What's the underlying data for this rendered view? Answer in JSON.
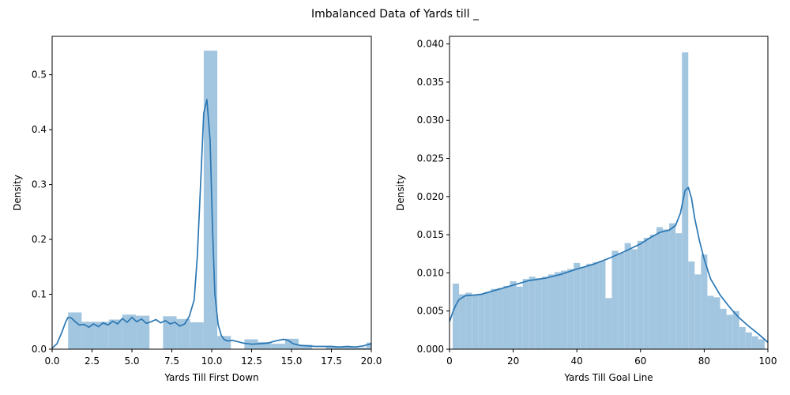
{
  "figure": {
    "suptitle": "Imbalanced Data of Yards till _"
  },
  "colors": {
    "bar": "#a3c6e0",
    "line": "#2b77b3",
    "axis": "#000000"
  },
  "chart_data": [
    {
      "type": "bar",
      "overlay": "kde-line",
      "title": "",
      "xlabel": "Yards Till First Down",
      "ylabel": "Density",
      "xlim": [
        0,
        20
      ],
      "ylim": [
        0,
        0.57
      ],
      "xticks": [
        0,
        2.5,
        5,
        7.5,
        10,
        12.5,
        15,
        17.5,
        20
      ],
      "xtick_labels": [
        "0.0",
        "2.5",
        "5.0",
        "7.5",
        "10.0",
        "12.5",
        "15.0",
        "17.5",
        "20.0"
      ],
      "yticks": [
        0,
        0.1,
        0.2,
        0.3,
        0.4,
        0.5
      ],
      "ytick_labels": [
        "0.0",
        "0.1",
        "0.2",
        "0.3",
        "0.4",
        "0.5"
      ],
      "bars": [
        {
          "x0": 1.0,
          "x1": 1.85,
          "y": 0.067
        },
        {
          "x0": 1.85,
          "x1": 2.7,
          "y": 0.05
        },
        {
          "x0": 2.7,
          "x1": 3.55,
          "y": 0.05
        },
        {
          "x0": 3.55,
          "x1": 4.4,
          "y": 0.054
        },
        {
          "x0": 4.4,
          "x1": 5.25,
          "y": 0.063
        },
        {
          "x0": 5.25,
          "x1": 6.1,
          "y": 0.061
        },
        {
          "x0": 6.1,
          "x1": 6.95,
          "y": 0.0
        },
        {
          "x0": 6.95,
          "x1": 7.8,
          "y": 0.06
        },
        {
          "x0": 7.8,
          "x1": 8.65,
          "y": 0.055
        },
        {
          "x0": 8.65,
          "x1": 9.5,
          "y": 0.049
        },
        {
          "x0": 9.5,
          "x1": 10.35,
          "y": 0.544
        },
        {
          "x0": 10.35,
          "x1": 11.2,
          "y": 0.024
        },
        {
          "x0": 11.2,
          "x1": 12.05,
          "y": 0.0
        },
        {
          "x0": 12.05,
          "x1": 12.9,
          "y": 0.018
        },
        {
          "x0": 12.9,
          "x1": 13.75,
          "y": 0.013
        },
        {
          "x0": 13.75,
          "x1": 14.6,
          "y": 0.01
        },
        {
          "x0": 14.6,
          "x1": 15.45,
          "y": 0.019
        },
        {
          "x0": 15.45,
          "x1": 16.3,
          "y": 0.008
        },
        {
          "x0": 16.3,
          "x1": 17.15,
          "y": 0.0
        },
        {
          "x0": 17.15,
          "x1": 18.0,
          "y": 0.005
        },
        {
          "x0": 18.0,
          "x1": 18.85,
          "y": 0.005
        },
        {
          "x0": 18.85,
          "x1": 19.7,
          "y": 0.003
        },
        {
          "x0": 19.7,
          "x1": 20.55,
          "y": 0.012
        }
      ],
      "kde": {
        "x": [
          0,
          0.3,
          0.6,
          0.85,
          1.0,
          1.2,
          1.45,
          1.7,
          2.0,
          2.3,
          2.6,
          2.9,
          3.2,
          3.5,
          3.8,
          4.1,
          4.4,
          4.7,
          5.0,
          5.3,
          5.6,
          5.9,
          6.2,
          6.5,
          6.8,
          7.1,
          7.4,
          7.7,
          8.0,
          8.3,
          8.6,
          8.9,
          9.1,
          9.3,
          9.5,
          9.7,
          9.9,
          10.05,
          10.2,
          10.4,
          10.6,
          10.8,
          11.0,
          11.3,
          11.6,
          12.0,
          12.5,
          13.0,
          13.5,
          14.0,
          14.5,
          14.8,
          15.1,
          15.5,
          16.0,
          16.5,
          17.0,
          17.5,
          18.0,
          18.5,
          19.0,
          19.5,
          20.0
        ],
        "y": [
          0.002,
          0.01,
          0.03,
          0.05,
          0.058,
          0.057,
          0.05,
          0.044,
          0.045,
          0.04,
          0.046,
          0.041,
          0.048,
          0.044,
          0.051,
          0.046,
          0.056,
          0.049,
          0.058,
          0.05,
          0.055,
          0.047,
          0.05,
          0.054,
          0.048,
          0.052,
          0.046,
          0.049,
          0.042,
          0.046,
          0.06,
          0.09,
          0.17,
          0.3,
          0.43,
          0.455,
          0.38,
          0.22,
          0.1,
          0.045,
          0.025,
          0.017,
          0.015,
          0.016,
          0.014,
          0.011,
          0.009,
          0.01,
          0.011,
          0.015,
          0.018,
          0.016,
          0.01,
          0.007,
          0.006,
          0.005,
          0.005,
          0.005,
          0.004,
          0.005,
          0.004,
          0.006,
          0.01
        ]
      }
    },
    {
      "type": "bar",
      "overlay": "kde-line",
      "title": "",
      "xlabel": "Yards Till Goal Line",
      "ylabel": "Density",
      "xlim": [
        0,
        100
      ],
      "ylim": [
        0,
        0.041
      ],
      "xticks": [
        0,
        20,
        40,
        60,
        80,
        100
      ],
      "xtick_labels": [
        "0",
        "20",
        "40",
        "60",
        "80",
        "100"
      ],
      "yticks": [
        0,
        0.005,
        0.01,
        0.015,
        0.02,
        0.025,
        0.03,
        0.035,
        0.04
      ],
      "ytick_labels": [
        "0.000",
        "0.005",
        "0.010",
        "0.015",
        "0.020",
        "0.025",
        "0.030",
        "0.035",
        "0.040"
      ],
      "bar_width": 2,
      "bar_starts": [
        1,
        3,
        5,
        7,
        9,
        11,
        13,
        15,
        17,
        19,
        21,
        23,
        25,
        27,
        29,
        31,
        33,
        35,
        37,
        39,
        41,
        43,
        45,
        47,
        49,
        51,
        53,
        55,
        57,
        59,
        61,
        63,
        65,
        67,
        69,
        71,
        73,
        75,
        77,
        79,
        81,
        83,
        85,
        87,
        89,
        91,
        93,
        95,
        97
      ],
      "bar_values": [
        0.0086,
        0.0072,
        0.0074,
        0.0071,
        0.0072,
        0.0075,
        0.0079,
        0.008,
        0.0083,
        0.0089,
        0.0082,
        0.0092,
        0.0095,
        0.0093,
        0.0095,
        0.0098,
        0.0101,
        0.0103,
        0.0105,
        0.0113,
        0.0108,
        0.0112,
        0.0114,
        0.0116,
        0.0067,
        0.0129,
        0.0126,
        0.0139,
        0.0131,
        0.0142,
        0.0146,
        0.015,
        0.016,
        0.0157,
        0.0165,
        0.0152,
        0.0389,
        0.0115,
        0.0098,
        0.0124,
        0.007,
        0.0068,
        0.0053,
        0.0045,
        0.005,
        0.0029,
        0.0022,
        0.0017,
        0.0013
      ],
      "kde": {
        "x": [
          0,
          1,
          2,
          3,
          5,
          8,
          10,
          15,
          20,
          25,
          30,
          35,
          40,
          45,
          50,
          55,
          60,
          63,
          66,
          69,
          71,
          72.5,
          74,
          75,
          76,
          77,
          78.5,
          80,
          82,
          85,
          88,
          91,
          94,
          97,
          100
        ],
        "y": [
          0.0036,
          0.0048,
          0.0058,
          0.0065,
          0.007,
          0.0071,
          0.0072,
          0.0078,
          0.0084,
          0.009,
          0.0093,
          0.0098,
          0.0105,
          0.0111,
          0.0119,
          0.0128,
          0.0138,
          0.0146,
          0.0153,
          0.0156,
          0.0162,
          0.0178,
          0.0208,
          0.0212,
          0.0198,
          0.0172,
          0.0142,
          0.0118,
          0.0092,
          0.0071,
          0.0055,
          0.0041,
          0.003,
          0.002,
          0.0009
        ]
      }
    }
  ]
}
